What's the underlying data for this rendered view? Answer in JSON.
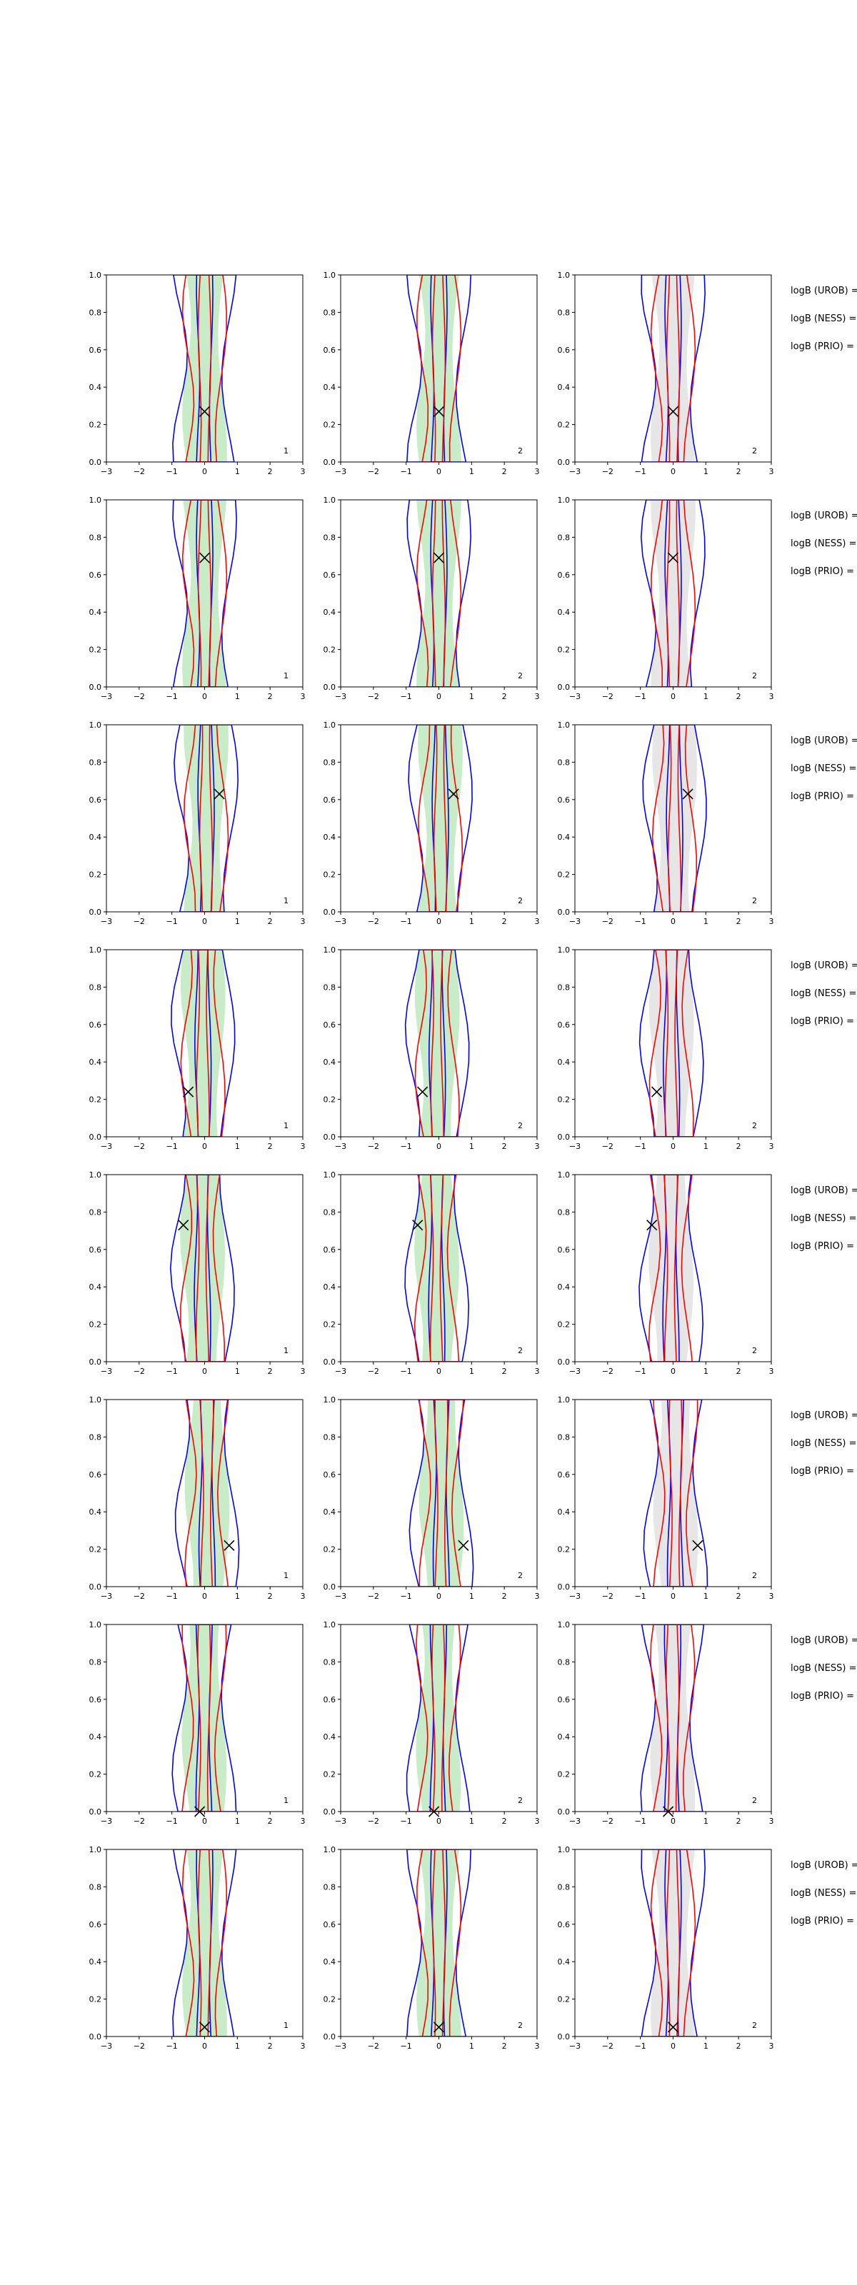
{
  "chart_data": {
    "type": "contour-grid",
    "xlim": [
      -3,
      3
    ],
    "ylim": [
      0,
      1
    ],
    "xticks": [
      "−3",
      "−2",
      "−1",
      "0",
      "1",
      "2",
      "3"
    ],
    "yticks": [
      "0.0",
      "0.2",
      "0.4",
      "0.6",
      "0.8",
      "1.0"
    ],
    "colors": {
      "blue": "#0000ff",
      "red": "#ff0000",
      "green_fill": "#c8ecc8",
      "grey_fill": "#e6e6e6",
      "marker": "#000000"
    },
    "column_labels": [
      "1",
      "2",
      "2"
    ],
    "annotation_lines": [
      "logB (UROB) =",
      "logB (NESS) =",
      "logB (PRIO) ="
    ],
    "rows": [
      {
        "marker": {
          "x": 0.0,
          "y": 0.27
        }
      },
      {
        "marker": {
          "x": 0.0,
          "y": 0.69
        }
      },
      {
        "marker": {
          "x": 0.45,
          "y": 0.63
        }
      },
      {
        "marker": {
          "x": -0.5,
          "y": 0.24
        }
      },
      {
        "marker": {
          "x": -0.65,
          "y": 0.73
        }
      },
      {
        "marker": {
          "x": 0.75,
          "y": 0.22
        }
      },
      {
        "marker": {
          "x": -0.15,
          "y": 0.0
        }
      },
      {
        "marker": {
          "x": 0.0,
          "y": 0.05
        }
      }
    ]
  }
}
